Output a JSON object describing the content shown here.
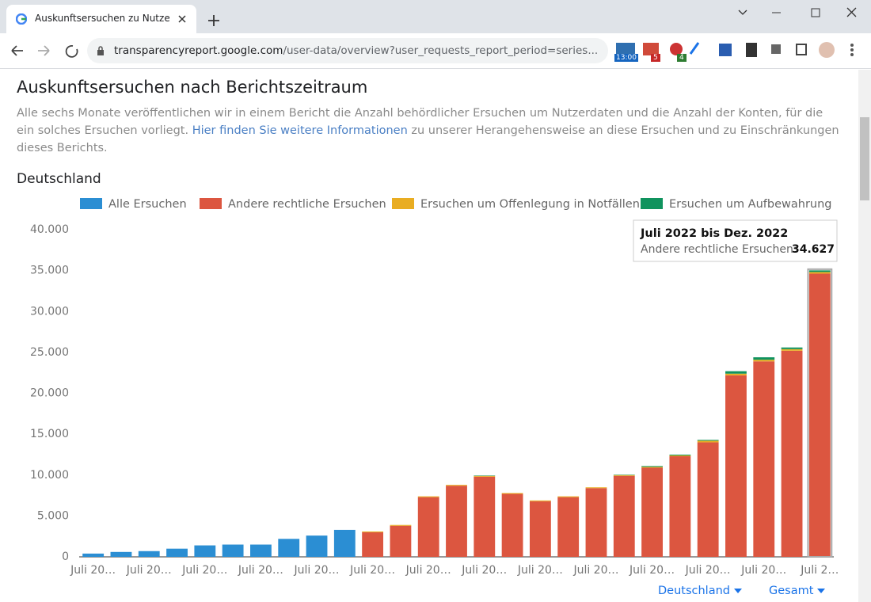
{
  "browser": {
    "tab_title": "Auskunftsersuchen zu Nutzerdat",
    "url_host": "transparencyreport.google.com",
    "url_path": "/user-data/overview?user_requests_report_period=series...",
    "extension_badges": [
      "13:00",
      "5",
      "4"
    ]
  },
  "page": {
    "heading": "Auskunftsersuchen nach Berichtszeitraum",
    "description_start": "Alle sechs Monate veröffentlichen wir in einem Bericht die Anzahl behördlicher Ersuchen um Nutzerdaten und die Anzahl der Konten, für die ein solches Ersuchen vorliegt.",
    "description_link": "Hier finden Sie weitere Informationen",
    "description_end": "zu unserer Herangehensweise an diese Ersuchen und zu Einschränkungen dieses Berichts.",
    "dropdowns": [
      "Deutschland",
      "Gesamt"
    ]
  },
  "chart_data": {
    "type": "stacked-bar",
    "title": "Deutschland",
    "categories": [
      "Juli 20…",
      null,
      "Juli 20…",
      null,
      "Juli 20…",
      null,
      "Juli 20…",
      null,
      "Juli 20…",
      null,
      "Juli 20…",
      null,
      "Juli 20…",
      null,
      "Juli 20…",
      null,
      "Juli 20…",
      null,
      "Juli 20…",
      null,
      "Juli 20…",
      null,
      "Juli 20…",
      null,
      "Juli 20…",
      null,
      "Juli 2…"
    ],
    "series": [
      {
        "name": "Alle Ersuchen",
        "color": "#2b8ed3",
        "values": [
          400,
          600,
          700,
          1000,
          1400,
          1500,
          1500,
          2200,
          2600,
          3300,
          null,
          null,
          null,
          null,
          null,
          null,
          null,
          null,
          null,
          null,
          null,
          null,
          null,
          null,
          null,
          null,
          null
        ]
      },
      {
        "name": "Andere rechtliche Ersuchen",
        "color": "#dc5640",
        "values": [
          null,
          null,
          null,
          null,
          null,
          null,
          null,
          null,
          null,
          null,
          3000,
          3800,
          7300,
          8700,
          9800,
          7700,
          6800,
          7300,
          8400,
          9900,
          10900,
          12300,
          14000,
          22200,
          23900,
          25200,
          34627
        ],
        "value_labels": [
          null,
          null,
          null,
          null,
          null,
          null,
          null,
          null,
          null,
          null,
          null,
          null,
          null,
          null,
          null,
          null,
          null,
          null,
          null,
          null,
          null,
          null,
          null,
          null,
          null,
          null,
          "34.627"
        ]
      },
      {
        "name": "Ersuchen um Offenlegung in Notfällen",
        "color": "#e9ad22",
        "values": [
          null,
          null,
          null,
          null,
          null,
          null,
          null,
          null,
          null,
          null,
          100,
          100,
          100,
          100,
          100,
          100,
          100,
          100,
          100,
          100,
          100,
          100,
          200,
          200,
          200,
          200,
          200
        ]
      },
      {
        "name": "Ersuchen um Aufbewahrung",
        "color": "#10935e",
        "values": [
          null,
          null,
          null,
          null,
          null,
          null,
          null,
          null,
          null,
          null,
          0,
          0,
          0,
          0,
          50,
          0,
          0,
          0,
          0,
          50,
          100,
          100,
          100,
          300,
          300,
          200,
          200
        ]
      }
    ],
    "ylim": [
      0,
      40000
    ],
    "yticks": [
      0,
      {
        "value": 5000,
        "label": "5.000"
      },
      {
        "value": 10000,
        "label": "10.000"
      },
      {
        "value": 15000,
        "label": "15.000"
      },
      {
        "value": 20000,
        "label": "20.000"
      },
      {
        "value": 25000,
        "label": "25.000"
      },
      {
        "value": 30000,
        "label": "30.000"
      },
      {
        "value": 35000,
        "label": "35.000"
      },
      {
        "value": 40000,
        "label": "40.000"
      }
    ],
    "grid": false,
    "legend": "top",
    "tooltip": {
      "index": 26,
      "series": 1,
      "title": "Juli 2022 bis Dez. 2022",
      "label": "Andere rechtliche Ersuchen:"
    }
  }
}
